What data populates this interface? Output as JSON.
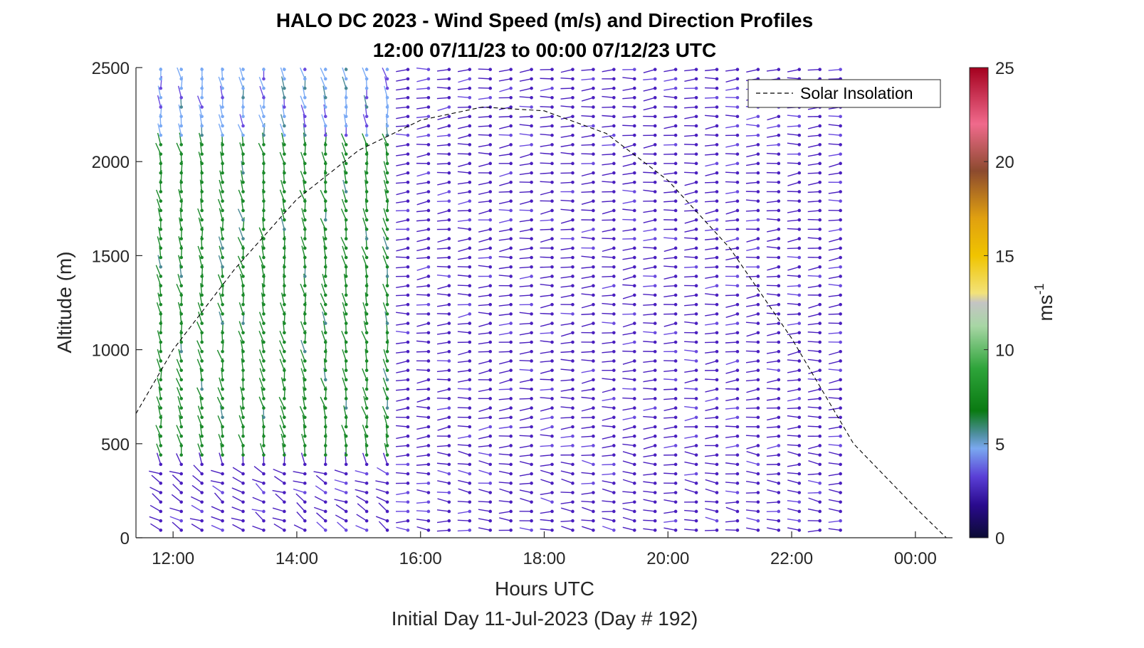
{
  "chart_data": {
    "type": "scatter",
    "title": "HALO DC 2023 - Wind Speed (m/s) and Direction Profiles",
    "subtitle": "12:00 07/11/23 to 00:00 07/12/23  UTC",
    "xlabel": "Hours UTC",
    "footer": "Initial Day 11-Jul-2023 (Day # 192)",
    "ylabel": "Altitude (m)",
    "x_ticks": [
      "12:00",
      "14:00",
      "16:00",
      "18:00",
      "20:00",
      "22:00",
      "00:00"
    ],
    "x_tick_hours": [
      12,
      14,
      16,
      18,
      20,
      22,
      24
    ],
    "xlim_hours": [
      11.4,
      24.6
    ],
    "y_ticks": [
      "0",
      "500",
      "1000",
      "1500",
      "2000",
      "2500"
    ],
    "ylim": [
      0,
      2500
    ],
    "colorbar": {
      "label": "ms",
      "label_exponent": "-1",
      "range": [
        0,
        25
      ],
      "ticks": [
        "0",
        "5",
        "10",
        "15",
        "20",
        "25"
      ]
    },
    "legend": {
      "entries": [
        "Solar Insolation"
      ],
      "placement": "top-right"
    },
    "profiles": {
      "start_hour": 11.8,
      "end_hour": 22.9,
      "interval_hours": 0.333,
      "altitude_start_m": 40,
      "altitude_step_m": 50,
      "altitude_max_m": 2490,
      "speed_regimes": [
        {
          "hours": [
            11.8,
            15.6
          ],
          "altitudes_m": [
            400,
            2100
          ],
          "speed_ms": 7
        },
        {
          "hours": [
            11.8,
            15.6
          ],
          "altitudes_m": [
            2100,
            2500
          ],
          "speed_ms": 5
        },
        {
          "hours": [
            11.8,
            15.6
          ],
          "altitudes_m": [
            0,
            400
          ],
          "speed_ms": 3
        },
        {
          "hours": [
            15.6,
            22.9
          ],
          "altitudes_m": [
            0,
            2500
          ],
          "speed_ms": 3
        }
      ]
    },
    "solar_insolation": {
      "series_name": "Solar Insolation",
      "x_hours": [
        11.4,
        12.0,
        13.0,
        14.0,
        15.0,
        16.0,
        17.0,
        18.0,
        19.0,
        20.0,
        21.0,
        22.0,
        23.0,
        24.0,
        24.5
      ],
      "y_m": [
        660,
        1000,
        1430,
        1800,
        2060,
        2220,
        2290,
        2270,
        2150,
        1900,
        1540,
        1060,
        500,
        160,
        0
      ]
    }
  }
}
